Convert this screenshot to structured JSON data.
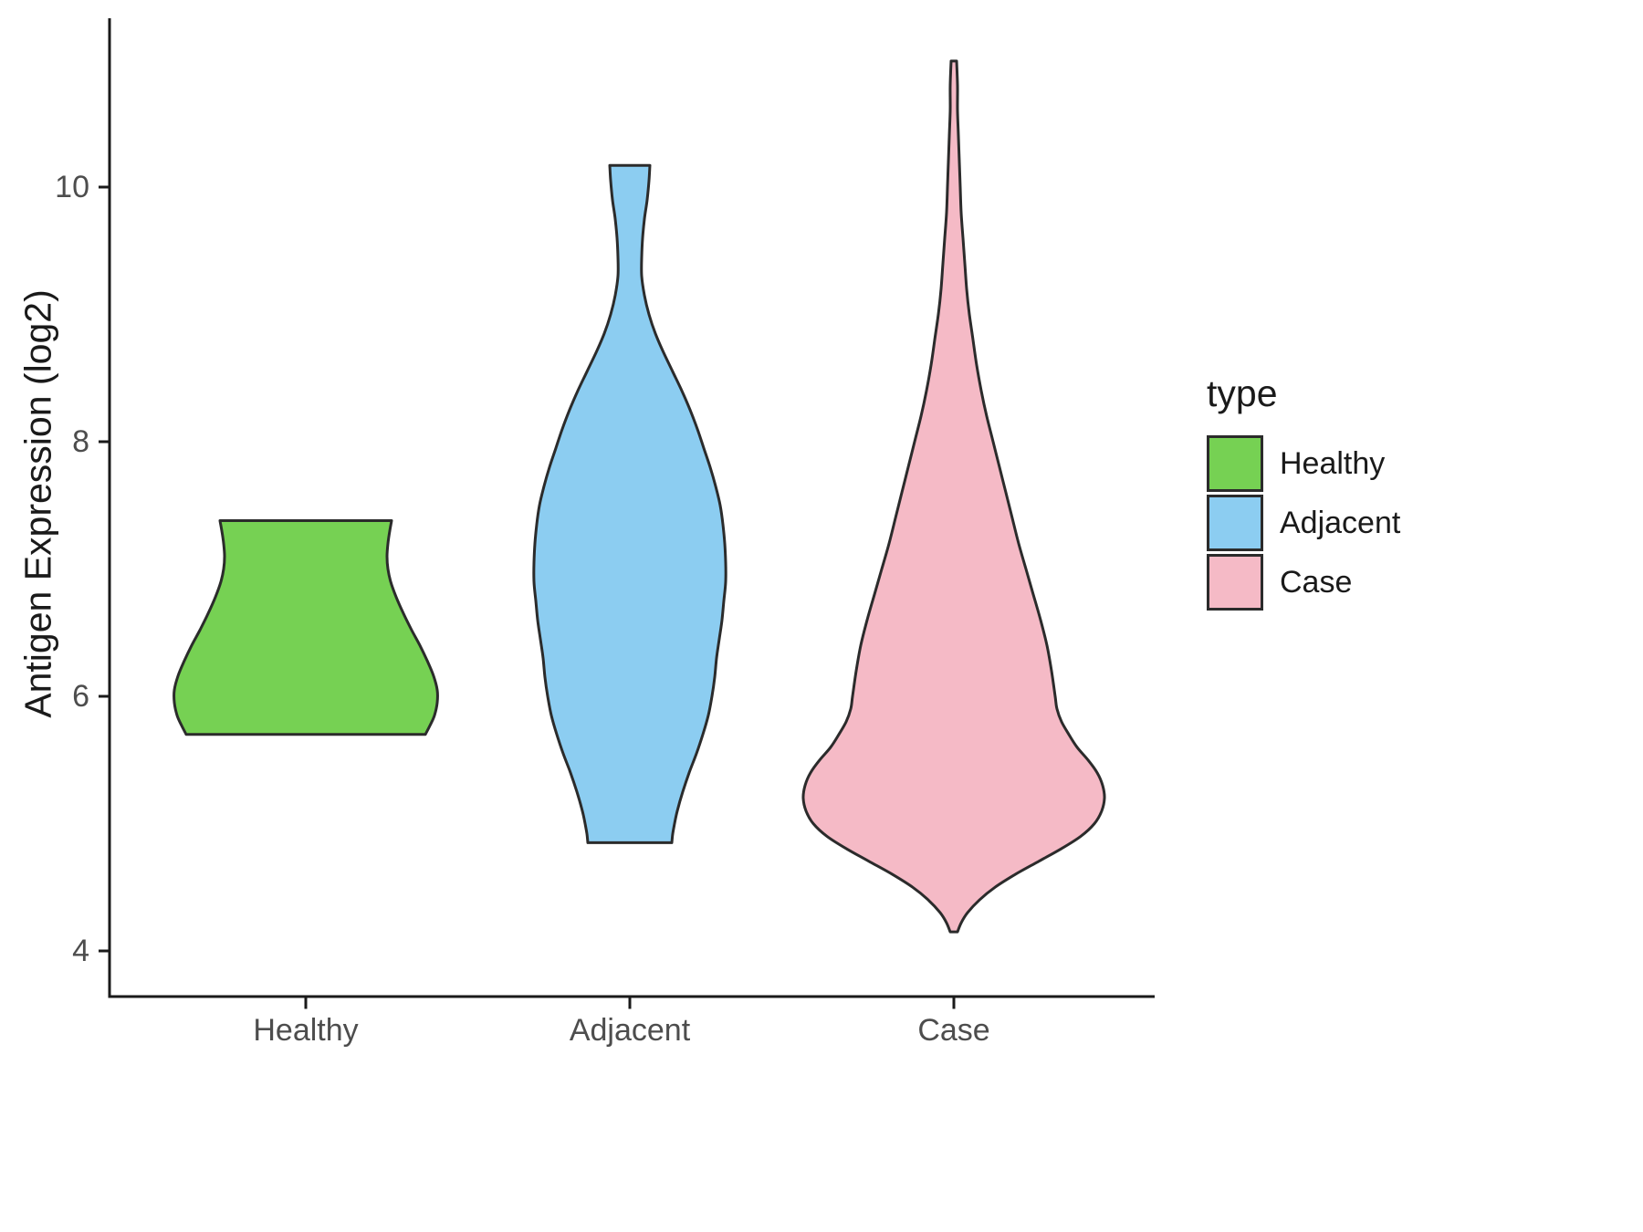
{
  "chart_data": {
    "type": "violin",
    "title": "",
    "xlabel": "",
    "ylabel": "Antigen Expression (log2)",
    "categories": [
      "Healthy",
      "Adjacent",
      "Case"
    ],
    "yticks": [
      4,
      6,
      8,
      10
    ],
    "ylim": [
      3.7,
      11.3
    ],
    "grid": false,
    "legend": {
      "title": "type",
      "position": "right",
      "entries": [
        "Healthy",
        "Adjacent",
        "Case"
      ]
    },
    "colors": {
      "axis_line": "#1a1a1a",
      "tick_label": "#4d4d4d",
      "violin_outline": "#2b2b2b"
    },
    "series": [
      {
        "name": "Healthy",
        "fill": "#76d153",
        "value_range": [
          5.7,
          7.38
        ],
        "trim": "flat_top_and_bottom",
        "profile": [
          [
            7.38,
            94
          ],
          [
            7.3,
            92
          ],
          [
            7.2,
            90
          ],
          [
            7.1,
            89
          ],
          [
            7.0,
            90
          ],
          [
            6.9,
            93
          ],
          [
            6.78,
            99
          ],
          [
            6.65,
            107
          ],
          [
            6.52,
            116
          ],
          [
            6.4,
            125
          ],
          [
            6.28,
            133
          ],
          [
            6.16,
            140
          ],
          [
            6.05,
            144
          ],
          [
            5.95,
            144
          ],
          [
            5.85,
            141
          ],
          [
            5.77,
            136
          ],
          [
            5.7,
            131
          ]
        ]
      },
      {
        "name": "Adjacent",
        "fill": "#8ccdf1",
        "value_range": [
          4.85,
          10.17
        ],
        "trim": "flat_top_and_bottom",
        "profile": [
          [
            10.17,
            22
          ],
          [
            10.05,
            21
          ],
          [
            9.9,
            19
          ],
          [
            9.75,
            16
          ],
          [
            9.6,
            14
          ],
          [
            9.45,
            13
          ],
          [
            9.3,
            13
          ],
          [
            9.15,
            16
          ],
          [
            9.0,
            21
          ],
          [
            8.85,
            28
          ],
          [
            8.7,
            37
          ],
          [
            8.55,
            47
          ],
          [
            8.4,
            57
          ],
          [
            8.25,
            66
          ],
          [
            8.1,
            74
          ],
          [
            7.95,
            81
          ],
          [
            7.8,
            88
          ],
          [
            7.65,
            94
          ],
          [
            7.5,
            99
          ],
          [
            7.35,
            102
          ],
          [
            7.2,
            104
          ],
          [
            7.05,
            105
          ],
          [
            6.9,
            105
          ],
          [
            6.75,
            103
          ],
          [
            6.6,
            101
          ],
          [
            6.45,
            98
          ],
          [
            6.3,
            95
          ],
          [
            6.15,
            93
          ],
          [
            6.0,
            90
          ],
          [
            5.85,
            86
          ],
          [
            5.7,
            80
          ],
          [
            5.55,
            73
          ],
          [
            5.4,
            65
          ],
          [
            5.25,
            58
          ],
          [
            5.1,
            52
          ],
          [
            5.0,
            49
          ],
          [
            4.92,
            47
          ],
          [
            4.85,
            46
          ]
        ]
      },
      {
        "name": "Case",
        "fill": "#f5bac6",
        "value_range": [
          4.15,
          10.99
        ],
        "trim": "pointed_ends",
        "profile": [
          [
            10.99,
            3
          ],
          [
            10.8,
            4
          ],
          [
            10.6,
            4
          ],
          [
            10.4,
            5
          ],
          [
            10.2,
            6
          ],
          [
            10.0,
            7
          ],
          [
            9.8,
            8
          ],
          [
            9.6,
            10
          ],
          [
            9.4,
            12
          ],
          [
            9.2,
            14
          ],
          [
            9.0,
            17
          ],
          [
            8.8,
            21
          ],
          [
            8.6,
            25
          ],
          [
            8.4,
            30
          ],
          [
            8.2,
            36
          ],
          [
            8.0,
            43
          ],
          [
            7.8,
            50
          ],
          [
            7.6,
            57
          ],
          [
            7.4,
            64
          ],
          [
            7.2,
            71
          ],
          [
            7.0,
            79
          ],
          [
            6.8,
            87
          ],
          [
            6.6,
            95
          ],
          [
            6.4,
            102
          ],
          [
            6.2,
            107
          ],
          [
            6.0,
            111
          ],
          [
            5.9,
            113
          ],
          [
            5.8,
            118
          ],
          [
            5.7,
            126
          ],
          [
            5.6,
            135
          ],
          [
            5.5,
            147
          ],
          [
            5.4,
            157
          ],
          [
            5.3,
            163
          ],
          [
            5.2,
            165
          ],
          [
            5.1,
            162
          ],
          [
            5.0,
            154
          ],
          [
            4.9,
            139
          ],
          [
            4.8,
            117
          ],
          [
            4.7,
            92
          ],
          [
            4.6,
            67
          ],
          [
            4.5,
            45
          ],
          [
            4.4,
            28
          ],
          [
            4.3,
            15
          ],
          [
            4.22,
            8
          ],
          [
            4.15,
            4
          ]
        ]
      }
    ]
  }
}
